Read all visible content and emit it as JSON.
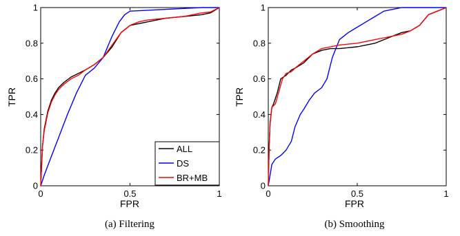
{
  "chart_data": [
    {
      "type": "line",
      "caption": "(a) Filtering",
      "xlabel": "FPR",
      "ylabel": "TPR",
      "xlim": [
        0,
        1
      ],
      "ylim": [
        0,
        1
      ],
      "xticks": [
        {
          "v": 0,
          "label": "0"
        },
        {
          "v": 0.5,
          "label": "0.5"
        },
        {
          "v": 1,
          "label": "1"
        }
      ],
      "yticks": [
        {
          "v": 0,
          "label": "0"
        },
        {
          "v": 0.2,
          "label": "0.2"
        },
        {
          "v": 0.4,
          "label": "0.4"
        },
        {
          "v": 0.6,
          "label": "0.6"
        },
        {
          "v": 0.8,
          "label": "0.8"
        },
        {
          "v": 1,
          "label": "1"
        }
      ],
      "grid": false,
      "legend": "bottom-right",
      "series": [
        {
          "name": "ALL",
          "color": "#000000",
          "x": [
            0,
            0.01,
            0.02,
            0.04,
            0.06,
            0.08,
            0.1,
            0.13,
            0.17,
            0.21,
            0.25,
            0.3,
            0.35,
            0.4,
            0.45,
            0.5,
            0.55,
            0.6,
            0.7,
            0.8,
            0.9,
            0.95,
            1
          ],
          "y": [
            0,
            0.22,
            0.32,
            0.42,
            0.48,
            0.52,
            0.55,
            0.58,
            0.61,
            0.63,
            0.65,
            0.68,
            0.72,
            0.78,
            0.86,
            0.9,
            0.91,
            0.92,
            0.94,
            0.95,
            0.96,
            0.97,
            1
          ]
        },
        {
          "name": "DS",
          "color": "#0000ff",
          "x": [
            0,
            0.02,
            0.05,
            0.1,
            0.15,
            0.2,
            0.25,
            0.3,
            0.35,
            0.4,
            0.44,
            0.47,
            0.5,
            0.6,
            0.7,
            0.8,
            0.9,
            1
          ],
          "y": [
            0,
            0.06,
            0.14,
            0.27,
            0.4,
            0.52,
            0.62,
            0.66,
            0.72,
            0.84,
            0.92,
            0.96,
            0.98,
            0.985,
            0.99,
            0.995,
            1,
            1
          ]
        },
        {
          "name": "BR+MB",
          "color": "#ff0000",
          "x": [
            0,
            0.01,
            0.02,
            0.04,
            0.06,
            0.08,
            0.1,
            0.13,
            0.17,
            0.21,
            0.25,
            0.3,
            0.35,
            0.4,
            0.45,
            0.5,
            0.55,
            0.6,
            0.7,
            0.8,
            0.9,
            0.95,
            1
          ],
          "y": [
            0,
            0.22,
            0.31,
            0.41,
            0.47,
            0.51,
            0.54,
            0.57,
            0.6,
            0.62,
            0.65,
            0.68,
            0.72,
            0.79,
            0.86,
            0.9,
            0.92,
            0.93,
            0.94,
            0.95,
            0.97,
            0.975,
            1
          ]
        }
      ]
    },
    {
      "type": "line",
      "caption": "(b) Smoothing",
      "xlabel": "FPR",
      "ylabel": "TPR",
      "xlim": [
        0,
        1
      ],
      "ylim": [
        0,
        1
      ],
      "xticks": [
        {
          "v": 0,
          "label": "0"
        },
        {
          "v": 0.5,
          "label": "0.5"
        },
        {
          "v": 1,
          "label": "1"
        }
      ],
      "yticks": [
        {
          "v": 0,
          "label": "0"
        },
        {
          "v": 0.2,
          "label": "0.2"
        },
        {
          "v": 0.4,
          "label": "0.4"
        },
        {
          "v": 0.6,
          "label": "0.6"
        },
        {
          "v": 0.8,
          "label": "0.8"
        },
        {
          "v": 1,
          "label": "1"
        }
      ],
      "grid": false,
      "legend": "none",
      "series": [
        {
          "name": "ALL",
          "color": "#000000",
          "x": [
            0,
            0.005,
            0.01,
            0.02,
            0.03,
            0.05,
            0.07,
            0.1,
            0.13,
            0.15,
            0.2,
            0.25,
            0.3,
            0.35,
            0.4,
            0.5,
            0.55,
            0.6,
            0.65,
            0.7,
            0.75,
            0.8,
            0.85,
            0.9,
            0.95,
            1
          ],
          "y": [
            0,
            0.22,
            0.35,
            0.44,
            0.46,
            0.52,
            0.6,
            0.62,
            0.65,
            0.66,
            0.69,
            0.74,
            0.76,
            0.77,
            0.77,
            0.78,
            0.79,
            0.8,
            0.82,
            0.84,
            0.86,
            0.87,
            0.9,
            0.96,
            0.98,
            1
          ]
        },
        {
          "name": "DS",
          "color": "#0000ff",
          "x": [
            0,
            0.01,
            0.02,
            0.04,
            0.07,
            0.1,
            0.13,
            0.15,
            0.18,
            0.2,
            0.23,
            0.26,
            0.3,
            0.33,
            0.36,
            0.4,
            0.45,
            0.5,
            0.55,
            0.6,
            0.65,
            0.7,
            0.75,
            0.8,
            0.9,
            1
          ],
          "y": [
            0,
            0.06,
            0.12,
            0.15,
            0.17,
            0.2,
            0.25,
            0.33,
            0.4,
            0.43,
            0.48,
            0.52,
            0.55,
            0.6,
            0.72,
            0.82,
            0.86,
            0.89,
            0.92,
            0.95,
            0.98,
            0.99,
            1,
            1,
            1,
            1
          ]
        },
        {
          "name": "BR+MB",
          "color": "#ff0000",
          "x": [
            0,
            0.005,
            0.01,
            0.02,
            0.04,
            0.06,
            0.08,
            0.1,
            0.13,
            0.15,
            0.2,
            0.25,
            0.3,
            0.35,
            0.4,
            0.5,
            0.55,
            0.6,
            0.65,
            0.7,
            0.75,
            0.8,
            0.85,
            0.9,
            0.95,
            1
          ],
          "y": [
            0,
            0.22,
            0.35,
            0.44,
            0.46,
            0.53,
            0.6,
            0.63,
            0.64,
            0.66,
            0.7,
            0.74,
            0.77,
            0.78,
            0.79,
            0.8,
            0.81,
            0.82,
            0.83,
            0.84,
            0.85,
            0.87,
            0.9,
            0.96,
            0.98,
            1
          ]
        }
      ]
    }
  ]
}
